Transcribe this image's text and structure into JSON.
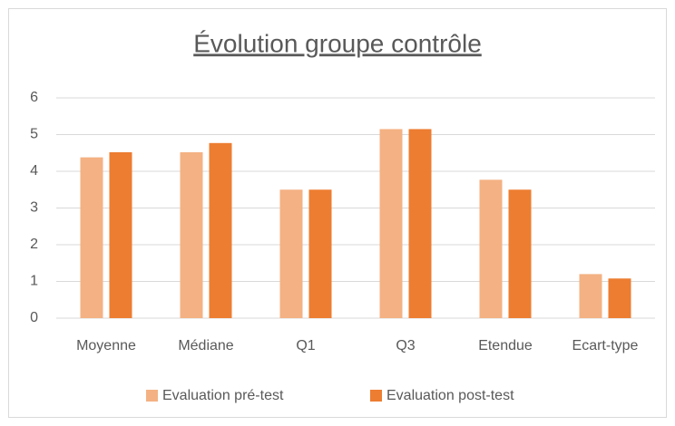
{
  "chart_data": {
    "type": "bar",
    "title": "Évolution groupe contrôle",
    "categories": [
      "Moyenne",
      "Médiane",
      "Q1",
      "Q3",
      "Etendue",
      "Ecart-type"
    ],
    "series": [
      {
        "name": "Evaluation pré-test",
        "color": "#f4b183",
        "values": [
          4.38,
          4.52,
          3.5,
          5.15,
          3.77,
          1.2
        ]
      },
      {
        "name": "Evaluation post-test",
        "color": "#ed7d31",
        "values": [
          4.52,
          4.77,
          3.5,
          5.15,
          3.5,
          1.08
        ]
      }
    ],
    "ylim": [
      0,
      6
    ],
    "yticks": [
      0,
      1,
      2,
      3,
      4,
      5,
      6
    ],
    "grid": true,
    "legend": "bottom"
  }
}
